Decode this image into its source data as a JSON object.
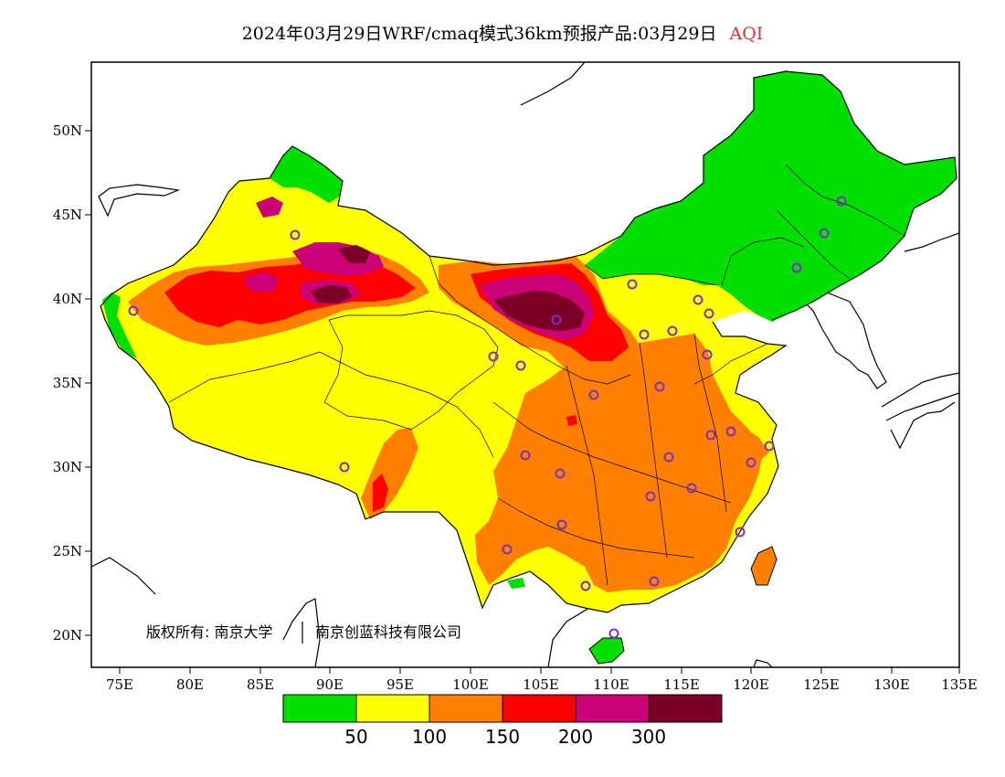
{
  "title": {
    "main": "2024年03月29日WRF/cmaq模式36km预报产品:03月29日",
    "variable": "AQI"
  },
  "axes": {
    "lat_labels": [
      "50N",
      "45N",
      "40N",
      "35N",
      "30N",
      "25N",
      "20N"
    ],
    "lon_labels": [
      "75E",
      "80E",
      "85E",
      "90E",
      "95E",
      "100E",
      "105E",
      "110E",
      "115E",
      "120E",
      "125E",
      "130E",
      "135E"
    ]
  },
  "copyright": {
    "owner": "版权所有: 南京大学",
    "company": "南京创蓝科技有限公司"
  },
  "legend": {
    "colors": [
      "#00e000",
      "#ffff00",
      "#ff8000",
      "#ff0000",
      "#cc0077",
      "#7a0025"
    ],
    "labels": [
      "50",
      "100",
      "150",
      "200",
      "300"
    ]
  },
  "colors": {
    "good": "#00e000",
    "moderate": "#ffff00",
    "light": "#ff8000",
    "medium": "#ff0000",
    "heavy": "#cc0077",
    "severe": "#7a0025",
    "station": "#8030c0"
  }
}
